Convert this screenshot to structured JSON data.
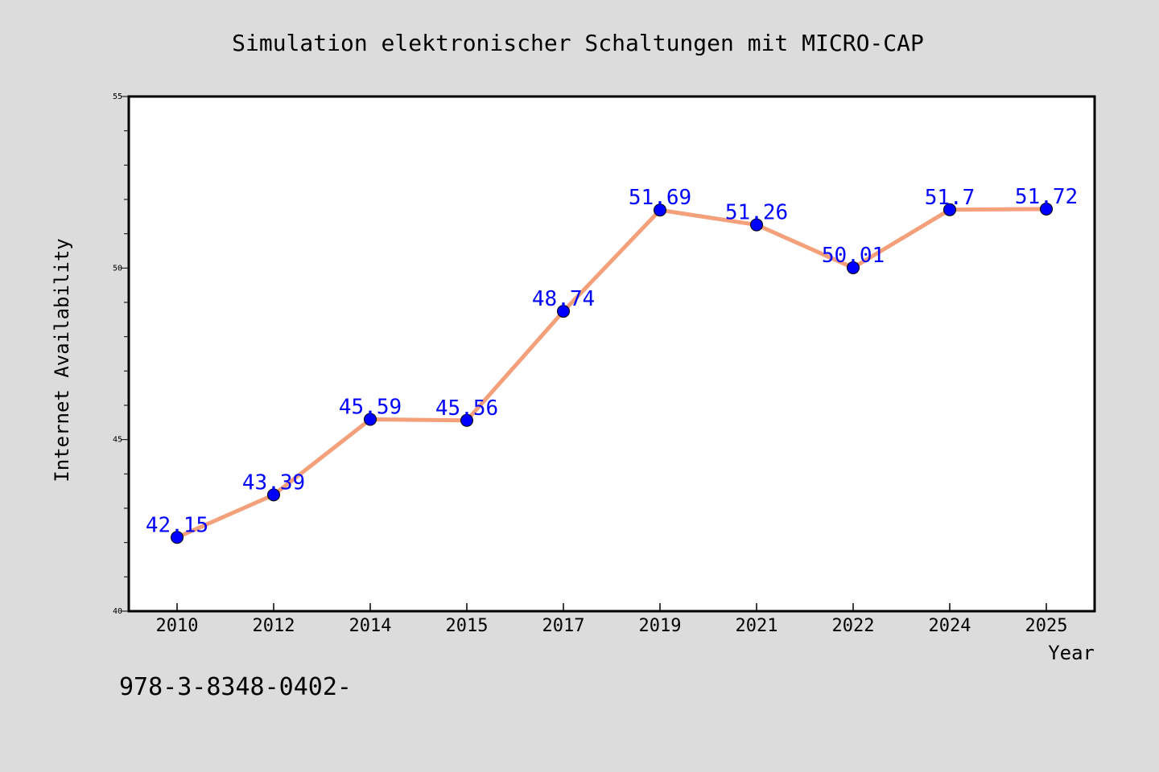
{
  "chart_data": {
    "type": "line",
    "title": "Simulation elektronischer Schaltungen mit MICRO-CAP",
    "xlabel": "Year",
    "ylabel": "Internet Availability",
    "categories": [
      "2010",
      "2012",
      "2014",
      "2015",
      "2017",
      "2019",
      "2021",
      "2022",
      "2024",
      "2025"
    ],
    "series": [
      {
        "values": [
          42.15,
          43.39,
          45.59,
          45.56,
          48.74,
          51.69,
          51.26,
          50.01,
          51.7,
          51.72
        ],
        "labels": [
          "42.15",
          "43.39",
          "45.59",
          "45.56",
          "48.74",
          "51.69",
          "51.26",
          "50.01",
          "51.7",
          "51.72"
        ]
      }
    ],
    "ylim": [
      40,
      55
    ],
    "yticks": [
      "40",
      "45",
      "50",
      "55"
    ],
    "grid": false,
    "line_color": "#f4a07a",
    "marker_color": "#0000ff",
    "label_color": "#0000ff",
    "background_color": "#dcdcdc",
    "plot_background": "#ffffff"
  },
  "footer_text": "978-3-8348-0402-"
}
